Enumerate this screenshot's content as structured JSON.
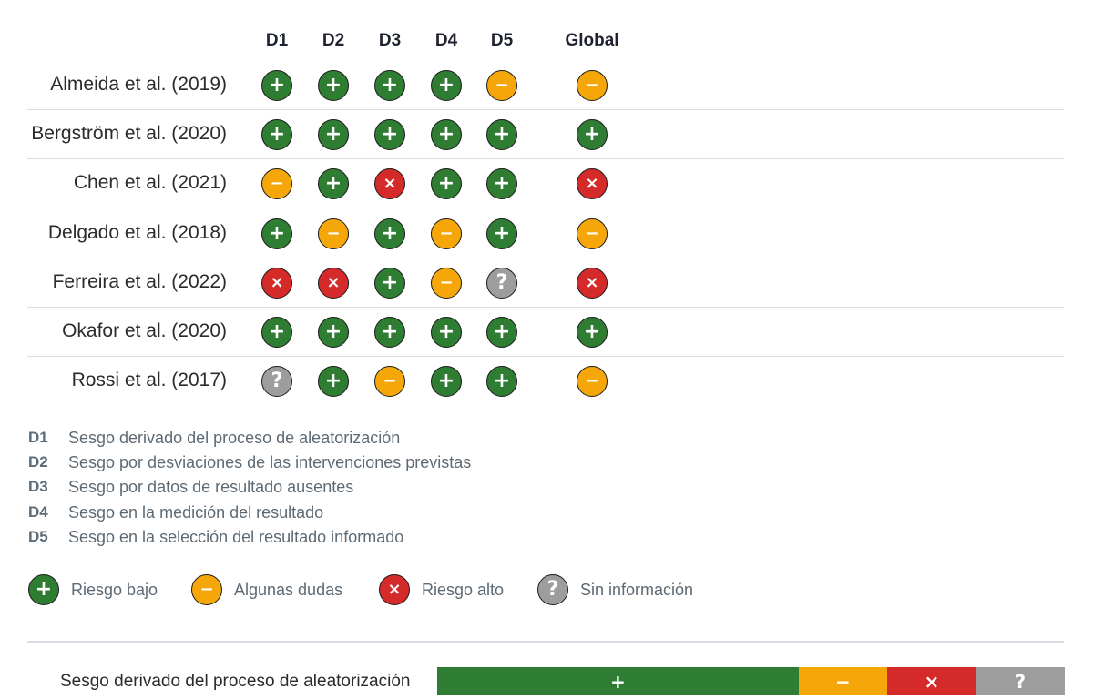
{
  "columns": [
    "D1",
    "D2",
    "D3",
    "D4",
    "D5",
    "Global"
  ],
  "colors": {
    "low": "#2e7d32",
    "some": "#f5a70a",
    "high": "#d42a2a",
    "noinfo": "#9d9d9d"
  },
  "symbols": {
    "low": "+",
    "some": "−",
    "high": "×",
    "noinfo": "?"
  },
  "studies": [
    {
      "name": "Almeida et al. (2019)",
      "ratings": [
        "low",
        "low",
        "low",
        "low",
        "some",
        "some"
      ]
    },
    {
      "name": "Bergström et al. (2020)",
      "ratings": [
        "low",
        "low",
        "low",
        "low",
        "low",
        "low"
      ]
    },
    {
      "name": "Chen et al. (2021)",
      "ratings": [
        "some",
        "low",
        "high",
        "low",
        "low",
        "high"
      ]
    },
    {
      "name": "Delgado et al. (2018)",
      "ratings": [
        "low",
        "some",
        "low",
        "some",
        "low",
        "some"
      ]
    },
    {
      "name": "Ferreira et al. (2022)",
      "ratings": [
        "high",
        "high",
        "low",
        "some",
        "noinfo",
        "high"
      ]
    },
    {
      "name": "Okafor et al. (2020)",
      "ratings": [
        "low",
        "low",
        "low",
        "low",
        "low",
        "low"
      ]
    },
    {
      "name": "Rossi et al. (2017)",
      "ratings": [
        "noinfo",
        "low",
        "some",
        "low",
        "low",
        "some"
      ]
    }
  ],
  "definitions": [
    {
      "code": "D1",
      "text": "Sesgo derivado del proceso de aleatorización"
    },
    {
      "code": "D2",
      "text": "Sesgo por desviaciones de las intervenciones previstas"
    },
    {
      "code": "D3",
      "text": "Sesgo por datos de resultado ausentes"
    },
    {
      "code": "D4",
      "text": "Sesgo en la medición del resultado"
    },
    {
      "code": "D5",
      "text": "Sesgo en la selección del resultado informado"
    }
  ],
  "legend": [
    {
      "key": "low",
      "label": "Riesgo bajo"
    },
    {
      "key": "some",
      "label": "Algunas dudas"
    },
    {
      "key": "high",
      "label": "Riesgo alto"
    },
    {
      "key": "noinfo",
      "label": "Sin información"
    }
  ],
  "summary": {
    "label": "Sesgo derivado del proceso de aleatorización",
    "segments": [
      {
        "key": "low",
        "percent": 57
      },
      {
        "key": "some",
        "percent": 14
      },
      {
        "key": "high",
        "percent": 14
      },
      {
        "key": "noinfo",
        "percent": 14
      }
    ]
  },
  "chart_data": {
    "type": "table",
    "columns": [
      "D1",
      "D2",
      "D3",
      "D4",
      "D5",
      "Global"
    ],
    "rows": [
      "Almeida et al. (2019)",
      "Bergström et al. (2020)",
      "Chen et al. (2021)",
      "Delgado et al. (2018)",
      "Ferreira et al. (2022)",
      "Okafor et al. (2020)",
      "Rossi et al. (2017)"
    ],
    "values": [
      [
        "+",
        "+",
        "+",
        "+",
        "−",
        "−"
      ],
      [
        "+",
        "+",
        "+",
        "+",
        "+",
        "+"
      ],
      [
        "−",
        "+",
        "×",
        "+",
        "+",
        "×"
      ],
      [
        "+",
        "−",
        "+",
        "−",
        "+",
        "−"
      ],
      [
        "×",
        "×",
        "+",
        "−",
        "?",
        "×"
      ],
      [
        "+",
        "+",
        "+",
        "+",
        "+",
        "+"
      ],
      [
        "?",
        "+",
        "−",
        "+",
        "+",
        "−"
      ]
    ],
    "legend": [
      "Riesgo bajo",
      "Algunas dudas",
      "Riesgo alto",
      "Sin información"
    ]
  }
}
